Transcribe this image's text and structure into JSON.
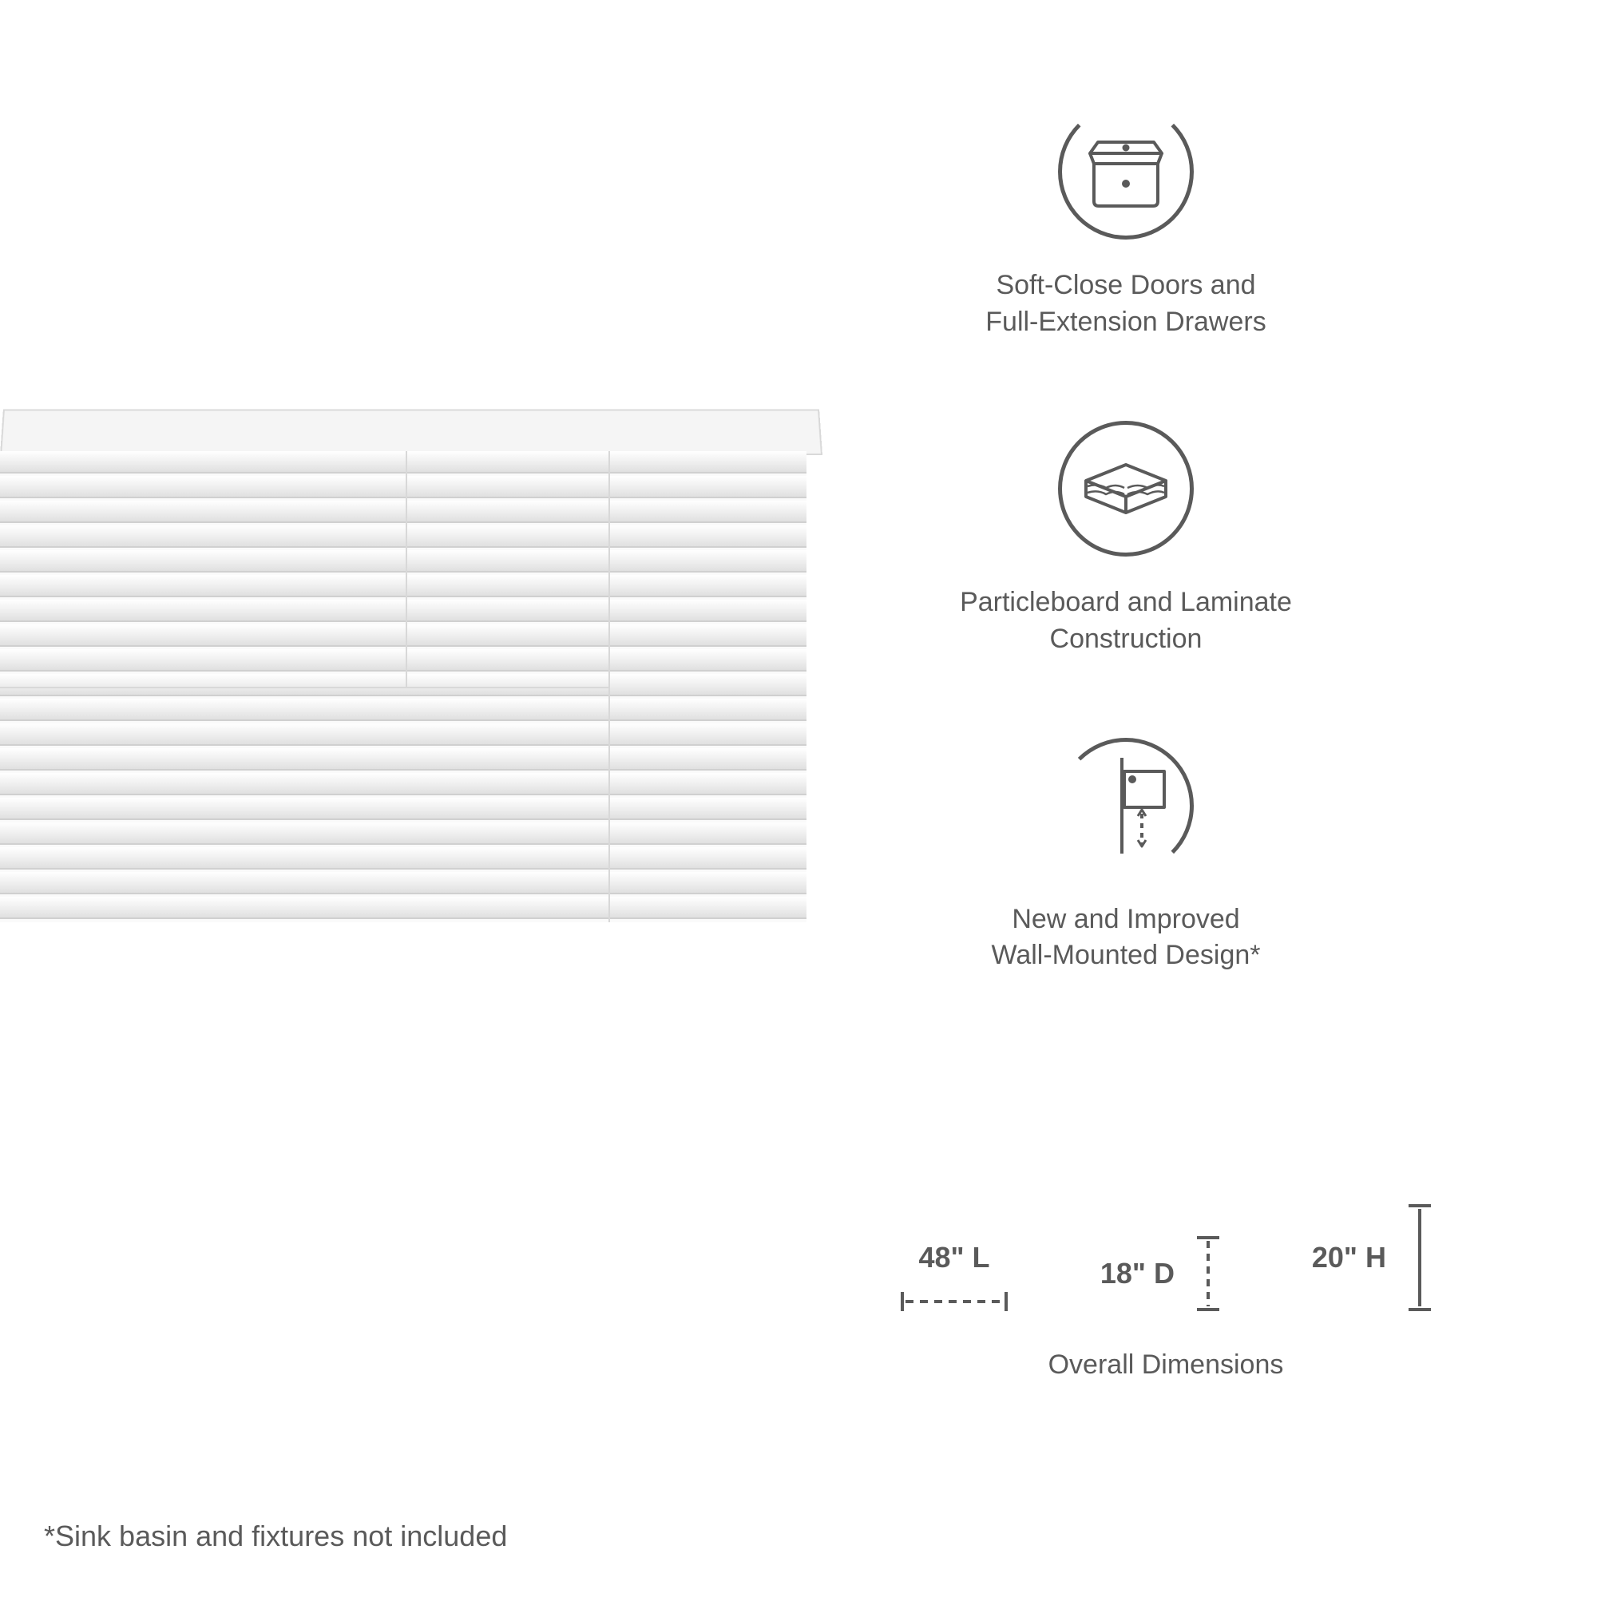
{
  "features": [
    {
      "icon": "drawer",
      "line1": "Soft-Close Doors and",
      "line2": "Full-Extension Drawers"
    },
    {
      "icon": "material",
      "line1": "Particleboard and Laminate",
      "line2": "Construction"
    },
    {
      "icon": "wallmount",
      "line1": "New and Improved",
      "line2": "Wall-Mounted Design*"
    }
  ],
  "dimensions": {
    "length": "48\" L",
    "depth": "18\" D",
    "height": "20\" H",
    "caption": "Overall Dimensions"
  },
  "footnote": "*Sink basin and fixtures not included",
  "colors": {
    "stroke": "#5a5a5a",
    "text": "#5a5a5a",
    "bg": "#ffffff",
    "product_light": "#fafafa",
    "product_edge": "#d8d8d8"
  },
  "typography": {
    "feature_fontsize": 34,
    "dim_fontsize": 36,
    "footnote_fontsize": 36
  },
  "icon_circle_diameter": 170,
  "icon_stroke_width": 5
}
